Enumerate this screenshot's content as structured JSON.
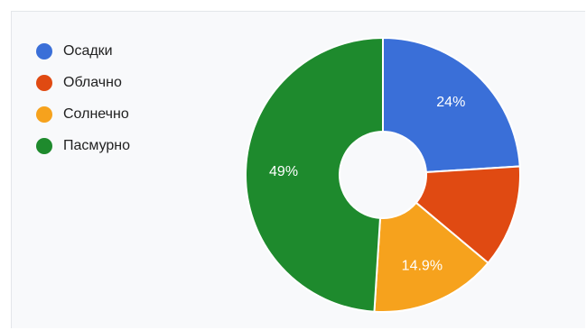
{
  "chart_data": {
    "type": "pie",
    "donut": true,
    "title": "",
    "legend_position": "top-left",
    "start_angle_deg": 0,
    "direction": "clockwise",
    "series": [
      {
        "name": "Осадки",
        "value": 24,
        "label": "24%",
        "color": "#3a6fd8"
      },
      {
        "name": "Облачно",
        "value": 12.1,
        "label": "",
        "color": "#e04a12"
      },
      {
        "name": "Солнечно",
        "value": 14.9,
        "label": "14.9%",
        "color": "#f6a21d"
      },
      {
        "name": "Пасмурно",
        "value": 49,
        "label": "49%",
        "color": "#1e8a2d"
      }
    ]
  }
}
